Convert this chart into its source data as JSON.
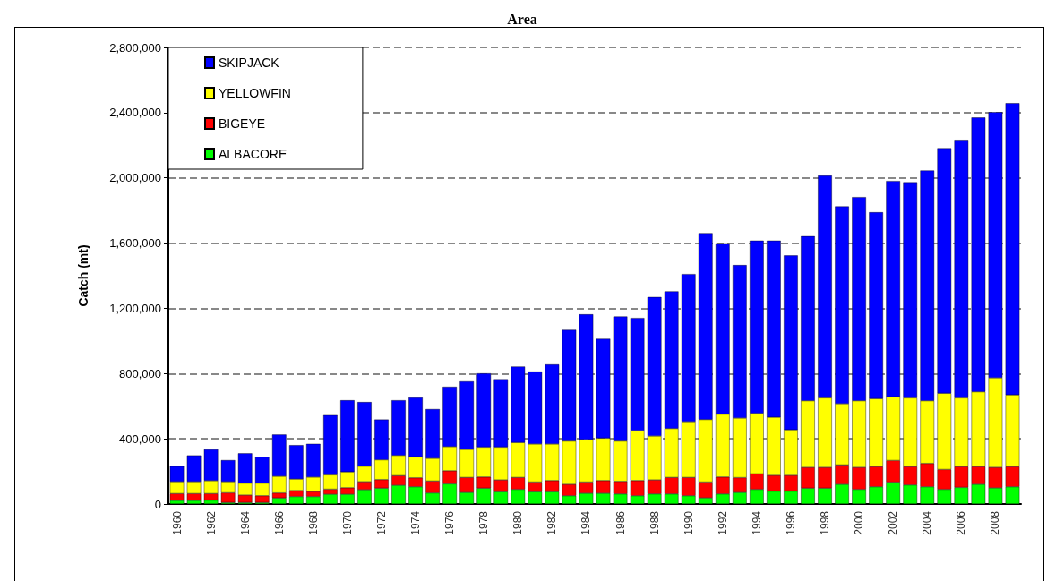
{
  "chart_data": {
    "type": "bar",
    "title": "Area",
    "ylabel": "Catch (mt)",
    "stacked": true,
    "categories": [
      "1960",
      null,
      "1962",
      null,
      "1964",
      null,
      "1966",
      null,
      "1968",
      null,
      "1970",
      null,
      "1972",
      null,
      "1974",
      null,
      "1976",
      null,
      "1978",
      null,
      "1980",
      null,
      "1982",
      null,
      "1984",
      null,
      "1986",
      null,
      "1988",
      null,
      "1990",
      null,
      "1992",
      null,
      "1994",
      null,
      "1996",
      null,
      "1998",
      null,
      "2000",
      null,
      "2002",
      null,
      "2004",
      null,
      "2006",
      null,
      "2008",
      null
    ],
    "series": [
      {
        "name": "ALBACORE",
        "color": "#00ff00",
        "values": [
          22000,
          22000,
          24000,
          9000,
          9000,
          9000,
          37000,
          46000,
          46000,
          60000,
          60000,
          88000,
          97000,
          115000,
          106000,
          68000,
          124000,
          71000,
          97000,
          75000,
          90000,
          75000,
          75000,
          51000,
          66000,
          66000,
          62000,
          51000,
          62000,
          62000,
          51000,
          38000,
          62000,
          71000,
          90000,
          79000,
          79000,
          97000,
          97000,
          121000,
          90000,
          106000,
          134000,
          117000,
          106000,
          90000,
          102000,
          121000,
          99000,
          106000
        ]
      },
      {
        "name": "BIGEYE",
        "color": "#ff0000",
        "values": [
          42000,
          42000,
          40000,
          60000,
          46000,
          42000,
          31000,
          37000,
          31000,
          31000,
          40000,
          49000,
          53000,
          59000,
          55000,
          73000,
          80000,
          92000,
          69000,
          73000,
          73000,
          60000,
          69000,
          70000,
          69000,
          78000,
          77000,
          93000,
          86000,
          101000,
          112000,
          97000,
          104000,
          91000,
          95000,
          97000,
          97000,
          128000,
          128000,
          119000,
          135000,
          124000,
          133000,
          113000,
          143000,
          122000,
          128000,
          109000,
          126000,
          124000
        ]
      },
      {
        "name": "YELLOWFIN",
        "color": "#ffff00",
        "values": [
          73000,
          73000,
          79000,
          68000,
          73000,
          77000,
          102000,
          70000,
          88000,
          88000,
          97000,
          95000,
          121000,
          124000,
          128000,
          139000,
          148000,
          172000,
          183000,
          201000,
          214000,
          233000,
          224000,
          265000,
          260000,
          260000,
          247000,
          306000,
          269000,
          300000,
          342000,
          383000,
          385000,
          365000,
          371000,
          356000,
          279000,
          408000,
          426000,
          375000,
          408000,
          416000,
          390000,
          421000,
          384000,
          467000,
          421000,
          458000,
          549000,
          439000
        ]
      },
      {
        "name": "SKIPJACK",
        "color": "#0000ff",
        "values": [
          95000,
          161000,
          192000,
          132000,
          183000,
          161000,
          256000,
          208000,
          204000,
          366000,
          439000,
          393000,
          247000,
          338000,
          364000,
          302000,
          367000,
          417000,
          452000,
          416000,
          466000,
          444000,
          488000,
          682000,
          768000,
          609000,
          764000,
          691000,
          852000,
          841000,
          905000,
          1143000,
          1048000,
          938000,
          1059000,
          1083000,
          1069000,
          1009000,
          1363000,
          1210000,
          1249000,
          1143000,
          1324000,
          1322000,
          1412000,
          1503000,
          1582000,
          1682000,
          1629000,
          1789000
        ]
      }
    ],
    "ylim": [
      0,
      2800000
    ],
    "yticks": [
      0,
      {
        "value": 400000,
        "label": "400,000"
      },
      {
        "value": 800000,
        "label": "800,000"
      },
      {
        "value": 1200000,
        "label": "1,200,000"
      },
      {
        "value": 1600000,
        "label": "1,600,000"
      },
      {
        "value": 2000000,
        "label": "2,000,000"
      },
      {
        "value": 2400000,
        "label": "2,400,000"
      },
      {
        "value": 2800000,
        "label": "2,800,000"
      }
    ],
    "grid": "y",
    "legend": "top left"
  }
}
